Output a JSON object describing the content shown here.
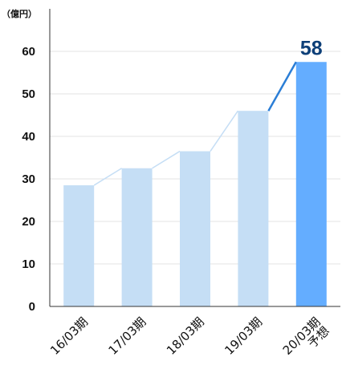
{
  "chart_data": {
    "type": "bar",
    "unit_label": "（億円）",
    "categories": [
      "16/03期",
      "17/03期",
      "18/03期",
      "19/03期",
      "20/03期"
    ],
    "category_notes": [
      "",
      "",
      "",
      "",
      "予想"
    ],
    "values": [
      28.5,
      32.5,
      36.5,
      46,
      57.5
    ],
    "data_labels": [
      "",
      "",
      "",
      "",
      "58"
    ],
    "highlight_index": 4,
    "ylim": [
      0,
      70
    ],
    "yticks": [
      0,
      10,
      20,
      30,
      40,
      50,
      60
    ],
    "grid": true,
    "colors": {
      "bar": "#c5def5",
      "bar_highlight": "#64adff",
      "line": "#c5def5",
      "line_highlight": "#2b7ed6",
      "data_label": "#0d3f78",
      "grid": "#e3e3e3",
      "axis": "#333333"
    }
  }
}
